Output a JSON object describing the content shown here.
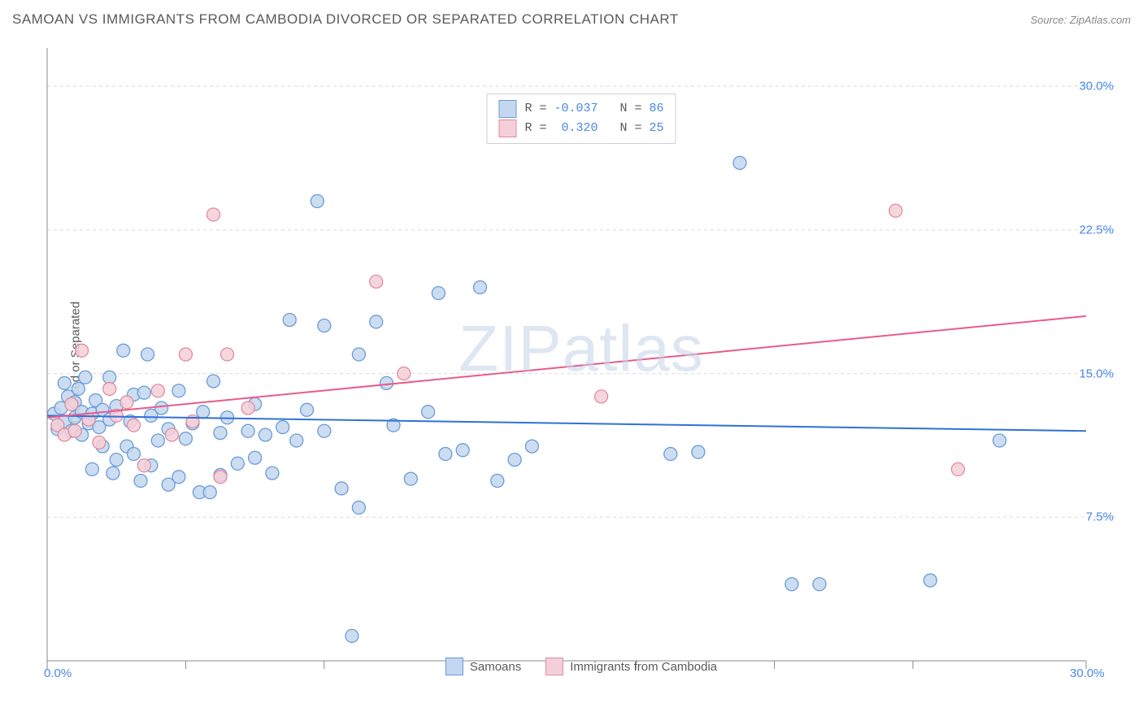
{
  "header": {
    "title": "SAMOAN VS IMMIGRANTS FROM CAMBODIA DIVORCED OR SEPARATED CORRELATION CHART",
    "source": "Source: ZipAtlas.com"
  },
  "chart": {
    "type": "scatter",
    "ylabel": "Divorced or Separated",
    "watermark": "ZIPatlas",
    "background_color": "#ffffff",
    "axis_color": "#888888",
    "grid_color": "#d8d8d8",
    "tick_color": "#888888",
    "xlim": [
      0,
      30
    ],
    "ylim": [
      0,
      32
    ],
    "xtick_positions": [
      0,
      4,
      8,
      12,
      17,
      21,
      25,
      30
    ],
    "ytick_labels": [
      {
        "pos": 30.0,
        "text": "30.0%"
      },
      {
        "pos": 22.5,
        "text": "22.5%"
      },
      {
        "pos": 15.0,
        "text": "15.0%"
      },
      {
        "pos": 7.5,
        "text": "7.5%"
      }
    ],
    "xaxis_end_labels": {
      "left": "0.0%",
      "right": "30.0%"
    },
    "grid_y_positions": [
      30.0,
      22.5,
      15.0,
      7.5
    ],
    "series": [
      {
        "name": "Samoans",
        "color_fill": "#c3d7ef",
        "color_stroke": "#6a9bd8",
        "marker_radius": 8,
        "r_value": "-0.037",
        "n_value": "86",
        "trendline": {
          "color": "#2f71d6",
          "width": 2,
          "y_at_x0": 12.8,
          "y_at_xmax": 12.0
        },
        "points": [
          [
            0.2,
            12.9
          ],
          [
            0.3,
            12.1
          ],
          [
            0.4,
            13.2
          ],
          [
            0.5,
            12.5
          ],
          [
            0.5,
            14.5
          ],
          [
            0.6,
            13.8
          ],
          [
            0.7,
            12.0
          ],
          [
            0.8,
            13.5
          ],
          [
            0.8,
            12.7
          ],
          [
            0.9,
            14.2
          ],
          [
            1.0,
            11.8
          ],
          [
            1.0,
            13.0
          ],
          [
            1.1,
            14.8
          ],
          [
            1.2,
            12.4
          ],
          [
            1.3,
            12.9
          ],
          [
            1.3,
            10.0
          ],
          [
            1.4,
            13.6
          ],
          [
            1.5,
            12.2
          ],
          [
            1.6,
            13.1
          ],
          [
            1.6,
            11.2
          ],
          [
            1.8,
            12.6
          ],
          [
            1.8,
            14.8
          ],
          [
            1.9,
            9.8
          ],
          [
            2.0,
            10.5
          ],
          [
            2.0,
            13.3
          ],
          [
            2.2,
            16.2
          ],
          [
            2.3,
            11.2
          ],
          [
            2.4,
            12.5
          ],
          [
            2.5,
            13.9
          ],
          [
            2.5,
            10.8
          ],
          [
            2.7,
            9.4
          ],
          [
            2.8,
            14.0
          ],
          [
            2.9,
            16.0
          ],
          [
            3.0,
            12.8
          ],
          [
            3.0,
            10.2
          ],
          [
            3.2,
            11.5
          ],
          [
            3.3,
            13.2
          ],
          [
            3.5,
            9.2
          ],
          [
            3.5,
            12.1
          ],
          [
            3.8,
            14.1
          ],
          [
            3.8,
            9.6
          ],
          [
            4.0,
            11.6
          ],
          [
            4.2,
            12.4
          ],
          [
            4.4,
            8.8
          ],
          [
            4.5,
            13.0
          ],
          [
            4.7,
            8.8
          ],
          [
            4.8,
            14.6
          ],
          [
            5.0,
            11.9
          ],
          [
            5.0,
            9.7
          ],
          [
            5.2,
            12.7
          ],
          [
            5.5,
            10.3
          ],
          [
            5.8,
            12.0
          ],
          [
            6.0,
            10.6
          ],
          [
            6.0,
            13.4
          ],
          [
            6.3,
            11.8
          ],
          [
            6.5,
            9.8
          ],
          [
            6.8,
            12.2
          ],
          [
            7.0,
            17.8
          ],
          [
            7.2,
            11.5
          ],
          [
            7.5,
            13.1
          ],
          [
            7.8,
            24.0
          ],
          [
            8.0,
            12.0
          ],
          [
            8.0,
            17.5
          ],
          [
            8.5,
            9.0
          ],
          [
            8.8,
            1.3
          ],
          [
            9.0,
            16.0
          ],
          [
            9.0,
            8.0
          ],
          [
            9.5,
            17.7
          ],
          [
            9.8,
            14.5
          ],
          [
            10.0,
            12.3
          ],
          [
            10.5,
            9.5
          ],
          [
            11.0,
            13.0
          ],
          [
            11.3,
            19.2
          ],
          [
            11.5,
            10.8
          ],
          [
            12.0,
            11.0
          ],
          [
            12.5,
            19.5
          ],
          [
            13.0,
            9.4
          ],
          [
            13.5,
            10.5
          ],
          [
            14.0,
            11.2
          ],
          [
            18.0,
            10.8
          ],
          [
            18.8,
            10.9
          ],
          [
            20.0,
            26.0
          ],
          [
            21.5,
            4.0
          ],
          [
            22.3,
            4.0
          ],
          [
            25.5,
            4.2
          ],
          [
            27.5,
            11.5
          ]
        ]
      },
      {
        "name": "Immigrants from Cambodia",
        "color_fill": "#f5cfd7",
        "color_stroke": "#e08ca0",
        "marker_radius": 8,
        "r_value": "0.320",
        "n_value": "25",
        "trendline": {
          "color": "#e85b8a",
          "width": 2,
          "y_at_x0": 12.7,
          "y_at_xmax": 18.0
        },
        "points": [
          [
            0.3,
            12.3
          ],
          [
            0.5,
            11.8
          ],
          [
            0.7,
            13.4
          ],
          [
            0.8,
            12.0
          ],
          [
            1.0,
            16.2
          ],
          [
            1.2,
            12.6
          ],
          [
            1.5,
            11.4
          ],
          [
            1.8,
            14.2
          ],
          [
            2.0,
            12.8
          ],
          [
            2.3,
            13.5
          ],
          [
            2.5,
            12.3
          ],
          [
            2.8,
            10.2
          ],
          [
            3.2,
            14.1
          ],
          [
            3.6,
            11.8
          ],
          [
            4.0,
            16.0
          ],
          [
            4.2,
            12.5
          ],
          [
            4.8,
            23.3
          ],
          [
            5.0,
            9.6
          ],
          [
            5.2,
            16.0
          ],
          [
            5.8,
            13.2
          ],
          [
            9.5,
            19.8
          ],
          [
            10.3,
            15.0
          ],
          [
            16.0,
            13.8
          ],
          [
            24.5,
            23.5
          ],
          [
            26.3,
            10.0
          ]
        ]
      }
    ],
    "legend_bottom": [
      {
        "swatch_fill": "#c3d7ef",
        "swatch_stroke": "#6a9bd8",
        "label": "Samoans"
      },
      {
        "swatch_fill": "#f5cfd7",
        "swatch_stroke": "#e08ca0",
        "label": "Immigrants from Cambodia"
      }
    ]
  }
}
